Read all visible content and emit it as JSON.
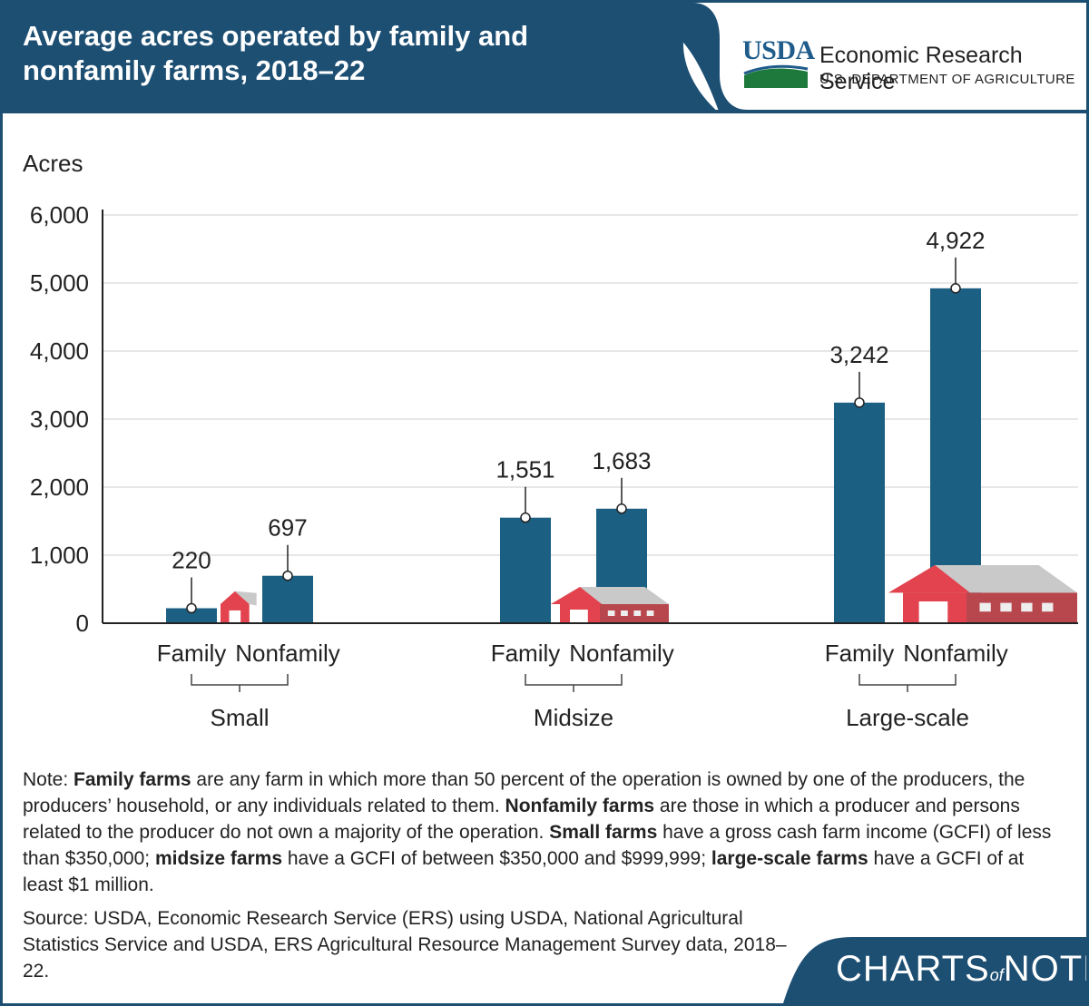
{
  "header": {
    "title": "Average acres operated by family and nonfamily farms, 2018–22",
    "logo_text": "USDA",
    "agency": "Economic Research Service",
    "department": "U.S. DEPARTMENT OF AGRICULTURE"
  },
  "chart_data": {
    "type": "bar",
    "ylabel": "Acres",
    "ylim": [
      0,
      6000
    ],
    "yticks": [
      0,
      1000,
      2000,
      3000,
      4000,
      5000,
      6000
    ],
    "ytick_labels": [
      "0",
      "1,000",
      "2,000",
      "3,000",
      "4,000",
      "5,000",
      "6,000"
    ],
    "grid": true,
    "groups": [
      {
        "name": "Small",
        "bars": [
          {
            "label": "Family",
            "value": 220,
            "value_label": "220"
          },
          {
            "label": "Nonfamily",
            "value": 697,
            "value_label": "697"
          }
        ]
      },
      {
        "name": "Midsize",
        "bars": [
          {
            "label": "Family",
            "value": 1551,
            "value_label": "1,551"
          },
          {
            "label": "Nonfamily",
            "value": 1683,
            "value_label": "1,683"
          }
        ]
      },
      {
        "name": "Large-scale",
        "bars": [
          {
            "label": "Family",
            "value": 3242,
            "value_label": "3,242"
          },
          {
            "label": "Nonfamily",
            "value": 4922,
            "value_label": "4,922"
          }
        ]
      }
    ],
    "bar_color": "#1b5f83"
  },
  "note": {
    "prefix": "Note: ",
    "t1b": "Family farms",
    "t2": " are any farm in which more than 50 percent of the operation is owned by one of the producers, the producers’ household, or any individuals related to them. ",
    "t3b": "Nonfamily farms",
    "t4": " are those in which a producer and persons related to the producer do not own a majority of the operation. ",
    "t5b": "Small farms",
    "t6": " have a gross cash farm income (GCFI) of less than $350,000; ",
    "t7b": "midsize farms",
    "t8": " have a GCFI of between $350,000 and $999,999; ",
    "t9b": "large-scale farms",
    "t10": " have a GCFI of at least $1 million."
  },
  "source": "Source: USDA, Economic Research Service (ERS) using USDA, National Agricultural Statistics Service and USDA, ERS Agricultural Resource Management Survey data, 2018–22.",
  "brand": {
    "left": "CHARTS",
    "of": "of",
    "right": "NOTE"
  },
  "colors": {
    "header_bg": "#1d4f73",
    "barn_red": "#e2434e",
    "roof_gray": "#c9c9c9"
  }
}
